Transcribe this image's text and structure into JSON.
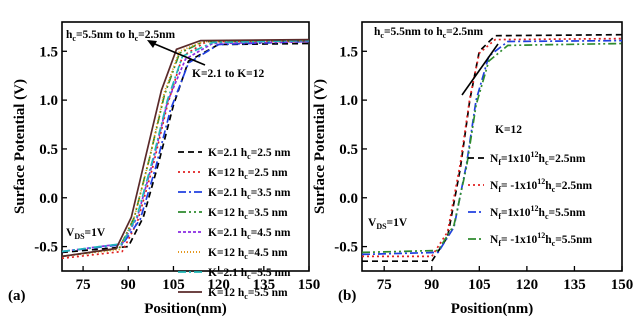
{
  "chart_data": [
    {
      "type": "line",
      "panel_label": "(a)",
      "xlabel": "Position(nm)",
      "ylabel": "Surface Potential (V)",
      "xlim": [
        68,
        150
      ],
      "ylim": [
        -0.75,
        1.8
      ],
      "xticks": [
        75,
        90,
        105,
        120,
        135,
        150
      ],
      "yticks": [
        -0.5,
        0.0,
        0.5,
        1.0,
        1.5
      ],
      "ytick_labels": [
        "-0.5",
        "0.0",
        "0.5",
        "1.0",
        "1.5"
      ],
      "grid": false,
      "legend_position": "right",
      "annotations": [
        {
          "text_main": "h",
          "text_sub": "c",
          "text_rest": "=5.5nm to h",
          "text_sub2": "c",
          "text_end": "=2.5nm"
        },
        {
          "text": "K=2.1 to K=12"
        },
        {
          "text": "V",
          "sub": "DS",
          "rest": "=1V"
        }
      ],
      "series": [
        {
          "name": "K=2.1 h",
          "sub": "c",
          "name_rest": "=2.5 nm",
          "color": "#000000",
          "dash": "6,4",
          "x": [
            68,
            90,
            95,
            100,
            105,
            110,
            120,
            150
          ],
          "y": [
            -0.56,
            -0.5,
            -0.2,
            0.35,
            0.95,
            1.4,
            1.57,
            1.58
          ]
        },
        {
          "name": "K=12 h",
          "sub": "c",
          "name_rest": "=2.5 nm",
          "color": "#e02020",
          "dash": "2,3",
          "x": [
            68,
            88,
            93,
            98,
            103,
            108,
            116,
            150
          ],
          "y": [
            -0.62,
            -0.55,
            -0.25,
            0.3,
            0.95,
            1.45,
            1.6,
            1.6
          ]
        },
        {
          "name": "K=2.1 h",
          "sub": "c",
          "name_rest": "=3.5 nm",
          "color": "#2040e0",
          "dash": "8,3,2,3",
          "x": [
            68,
            88,
            94,
            99,
            104,
            110,
            120,
            150
          ],
          "y": [
            -0.55,
            -0.48,
            -0.22,
            0.3,
            0.9,
            1.38,
            1.57,
            1.6
          ]
        },
        {
          "name": "K=12 h",
          "sub": "c",
          "name_rest": "=3.5 nm",
          "color": "#2e8b2e",
          "dash": "8,3,2,3,2,3",
          "x": [
            68,
            87,
            92,
            97,
            102,
            107,
            115,
            150
          ],
          "y": [
            -0.6,
            -0.52,
            -0.2,
            0.4,
            1.05,
            1.48,
            1.6,
            1.61
          ]
        },
        {
          "name": "K=2.1 h",
          "sub": "c",
          "name_rest": "=4.5 nm",
          "color": "#8a2be2",
          "dash": "3,2",
          "x": [
            68,
            88,
            93,
            98,
            103,
            109,
            118,
            150
          ],
          "y": [
            -0.55,
            -0.47,
            -0.2,
            0.35,
            0.98,
            1.42,
            1.58,
            1.6
          ]
        },
        {
          "name": "K=12 h",
          "sub": "c",
          "name_rest": "=4.5 nm",
          "color": "#e08a00",
          "dash": "1,2",
          "x": [
            68,
            87,
            92,
            97,
            102,
            107,
            115,
            150
          ],
          "y": [
            -0.6,
            -0.53,
            -0.2,
            0.4,
            1.08,
            1.5,
            1.6,
            1.61
          ]
        },
        {
          "name": "K=2.1 h",
          "sub": "c",
          "name_rest": "=5.5 nm",
          "color": "#20b8b8",
          "dash": "8,3,2,3",
          "x": [
            68,
            88,
            93,
            98,
            103,
            108,
            118,
            150
          ],
          "y": [
            -0.55,
            -0.47,
            -0.18,
            0.38,
            1.0,
            1.45,
            1.59,
            1.61
          ]
        },
        {
          "name": "K=12 h",
          "sub": "c",
          "name_rest": "=5.5 nm",
          "color": "#5a2a2a",
          "dash": "",
          "x": [
            68,
            86,
            91,
            96,
            101,
            106,
            114,
            150
          ],
          "y": [
            -0.6,
            -0.52,
            -0.2,
            0.45,
            1.1,
            1.52,
            1.61,
            1.62
          ]
        }
      ]
    },
    {
      "type": "line",
      "panel_label": "(b)",
      "xlabel": "Position(nm)",
      "ylabel": "Surface Potential (V)",
      "xlim": [
        68,
        150
      ],
      "ylim": [
        -0.75,
        1.8
      ],
      "xticks": [
        75,
        90,
        105,
        120,
        135,
        150
      ],
      "yticks": [
        -0.5,
        0.0,
        0.5,
        1.0,
        1.5
      ],
      "ytick_labels": [
        "-0.5",
        "0.0",
        "0.5",
        "1.0",
        "1.5"
      ],
      "grid": false,
      "legend_position": "right",
      "legend_title": "K=12",
      "annotations": [
        {
          "text_main": "h",
          "text_sub": "c",
          "text_rest": "=5.5nm to h",
          "text_sub2": "c",
          "text_end": "=2.5nm"
        },
        {
          "text": "V",
          "sub": "DS",
          "rest": "=1V"
        }
      ],
      "series": [
        {
          "name": "N",
          "sub": "f",
          "name_mid": "=1x10",
          "sup": "12",
          "name_h": "h",
          "sub2": "c",
          "name_rest": "=2.5nm",
          "color": "#000000",
          "dash": "6,4",
          "x": [
            68,
            90,
            95,
            99,
            102,
            105,
            110,
            150
          ],
          "y": [
            -0.65,
            -0.65,
            -0.4,
            0.3,
            1.0,
            1.5,
            1.66,
            1.67
          ]
        },
        {
          "name": "N",
          "sub": "f",
          "name_mid": "= -1x10",
          "sup": "12",
          "name_h": "h",
          "sub2": "c",
          "name_rest": "=2.5nm",
          "color": "#e02020",
          "dash": "2,3",
          "x": [
            68,
            90,
            95,
            99,
            102,
            105,
            110,
            150
          ],
          "y": [
            -0.6,
            -0.6,
            -0.35,
            0.35,
            1.02,
            1.48,
            1.62,
            1.63
          ]
        },
        {
          "name": "N",
          "sub": "f",
          "name_mid": "=1x10",
          "sup": "12",
          "name_h": "h",
          "sub2": "c",
          "name_rest": "=5.5nm",
          "color": "#2040e0",
          "dash": "8,3,2,3",
          "x": [
            68,
            92,
            97,
            101,
            104,
            108,
            114,
            150
          ],
          "y": [
            -0.58,
            -0.56,
            -0.3,
            0.35,
            1.0,
            1.45,
            1.6,
            1.61
          ]
        },
        {
          "name": "N",
          "sub": "f",
          "name_mid": "= -1x10",
          "sup": "12",
          "name_h": "h",
          "sub2": "c",
          "name_rest": "=5.5nm",
          "color": "#2e8b2e",
          "dash": "8,3,2,3,2,3",
          "x": [
            68,
            92,
            97,
            101,
            104,
            108,
            114,
            150
          ],
          "y": [
            -0.56,
            -0.54,
            -0.28,
            0.32,
            0.95,
            1.4,
            1.56,
            1.58
          ]
        }
      ]
    }
  ]
}
